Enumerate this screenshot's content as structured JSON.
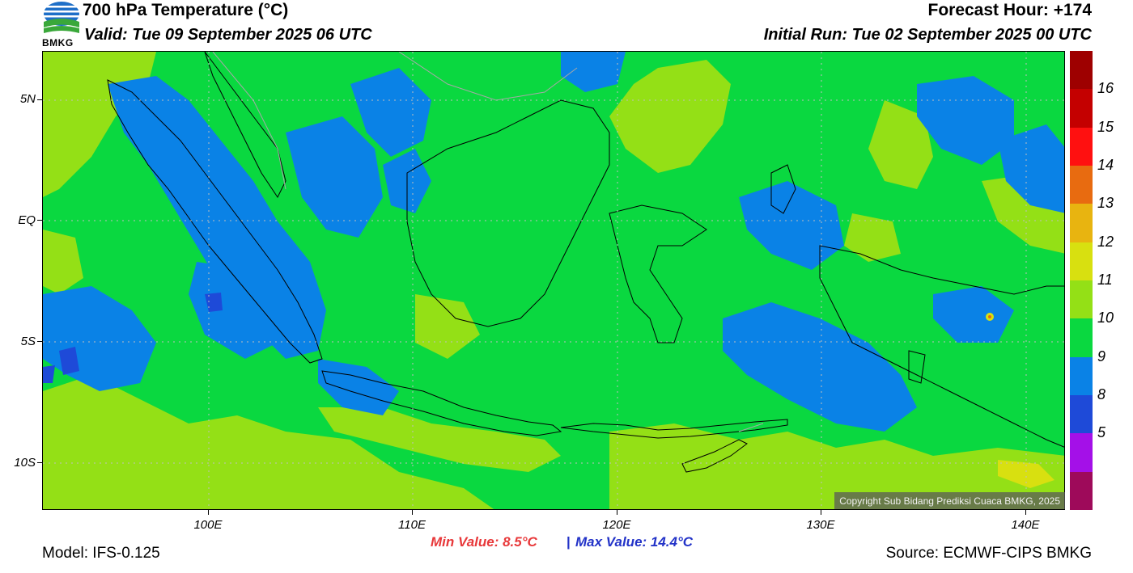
{
  "header": {
    "title": "700 hPa Temperature (°C)",
    "valid": "Valid: Tue 09 September 2025 06 UTC",
    "forecast_hour": "Forecast Hour: +174",
    "initial_run": "Initial Run: Tue 02 September 2025 00 UTC",
    "logo_text": "BMKG"
  },
  "axes": {
    "lat_labels": [
      "5N",
      "EQ",
      "5S",
      "10S"
    ],
    "lon_labels": [
      "100E",
      "110E",
      "120E",
      "130E",
      "140E"
    ]
  },
  "colorbar": {
    "labels": [
      "16",
      "15",
      "14",
      "13",
      "12",
      "11",
      "10",
      "9",
      "8",
      "5"
    ],
    "colors": [
      "#9e0000",
      "#c40000",
      "#ff1010",
      "#e86b10",
      "#e8b410",
      "#d8e010",
      "#94e016",
      "#0ad840",
      "#0a82e6",
      "#1e4ad8",
      "#a410e8",
      "#9e0a5a"
    ]
  },
  "map": {
    "colors": {
      "green_11": "#0ad840",
      "lightgreen_12": "#94e016",
      "blue_10": "#0a82e6",
      "darkblue_9": "#1e4ad8",
      "yellow_13": "#d8e010",
      "coastline": "#000000"
    }
  },
  "copyright": "Copyright Sub Bidang Prediksi Cuaca BMKG, 2025",
  "min_value": "Min Value: 8.5°C",
  "separator": "|",
  "max_value": "Max Value: 14.4°C",
  "model": "Model: IFS-0.125",
  "source": "Source: ECMWF-CIPS BMKG"
}
